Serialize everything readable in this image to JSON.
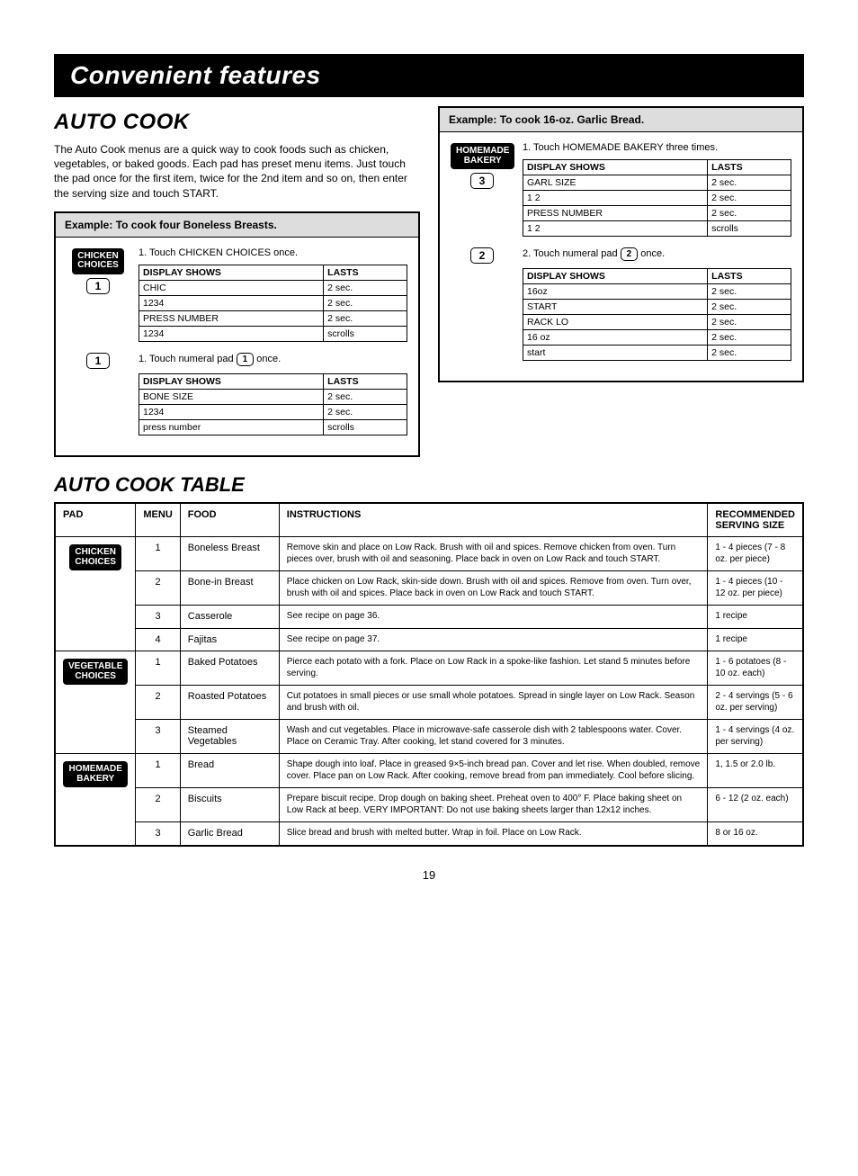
{
  "banner": "Convenient features",
  "section_title": "AUTO COOK",
  "intro": "The Auto Cook menus are a quick way to cook foods such as chicken, vegetables, or baked goods. Each pad has preset menu items. Just touch the pad once for the first item, twice for the 2nd item and so on, then enter the serving size and touch START.",
  "example1": {
    "header": "Example: To cook four Boneless Breasts.",
    "btn1": "CHICKEN\nCHOICES",
    "num_btn": "1",
    "step1_text": "1. Touch CHICKEN CHOICES once.",
    "disp1": {
      "header1": "DISPLAY SHOWS",
      "header2": "LASTS",
      "rows": [
        [
          "CHIC",
          "2 sec."
        ],
        [
          "1234",
          "2 sec."
        ],
        [
          "PRESS NUMBER",
          "2 sec."
        ],
        [
          "1234",
          "scrolls"
        ]
      ]
    },
    "step2_prefix": "1. Touch numeral pad ",
    "step2_suffix": " once.",
    "disp2": {
      "header1": "DISPLAY SHOWS",
      "header2": "LASTS",
      "rows": [
        [
          "BONE SIZE",
          "2 sec."
        ],
        [
          "1234",
          "2 sec."
        ],
        [
          "press number",
          "scrolls"
        ]
      ]
    }
  },
  "example2": {
    "header": "Example: To cook 16-oz. Garlic Bread.",
    "btn1": "HOMEMADE\nBAKERY",
    "num_a": "3",
    "step1_text": "1. Touch HOMEMADE BAKERY three times.",
    "disp1": {
      "header1": "DISPLAY SHOWS",
      "header2": "LASTS",
      "rows": [
        [
          "GARL SIZE",
          "2 sec."
        ],
        [
          "1 2",
          "2 sec."
        ],
        [
          "PRESS NUMBER",
          "2 sec."
        ],
        [
          "1 2",
          "scrolls"
        ]
      ]
    },
    "num_b": "2",
    "step2_prefix": "2. Touch numeral pad ",
    "step2_btn": "2",
    "step2_suffix": " once.",
    "disp2": {
      "header1": "DISPLAY SHOWS",
      "header2": "LASTS",
      "rows": [
        [
          "16oz",
          "2 sec."
        ],
        [
          "START",
          "2 sec."
        ],
        [
          "RACK LO",
          "2 sec."
        ],
        [
          "16 oz",
          "2 sec."
        ],
        [
          "start",
          "2 sec."
        ]
      ]
    }
  },
  "table_title": "AUTO COOK TABLE",
  "cook_table": {
    "headers": [
      "PAD",
      "MENU",
      "FOOD",
      "INSTRUCTIONS",
      "RECOMMENDED SERVING SIZE"
    ],
    "rows": [
      {
        "pad": "CHICKEN\nCHOICES",
        "menu": "1",
        "food": "Boneless Breast",
        "instr": "Remove skin and place on Low Rack. Brush with oil and spices. Remove chicken from oven. Turn pieces over, brush with oil and seasoning. Place back in oven on Low Rack and touch START.",
        "rec": "1 - 4 pieces (7 - 8 oz. per piece)"
      },
      {
        "pad": "",
        "menu": "2",
        "food": "Bone-in Breast",
        "instr": "Place chicken on Low Rack, skin-side down. Brush with oil and spices. Remove from oven. Turn over, brush with oil and spices. Place back in oven on Low Rack and touch START.",
        "rec": "1 - 4 pieces (10 - 12 oz. per piece)"
      },
      {
        "pad": "",
        "menu": "3",
        "food": "Casserole",
        "instr": "See recipe on page 36.",
        "rec": "1 recipe"
      },
      {
        "pad": "",
        "menu": "4",
        "food": "Fajitas",
        "instr": "See recipe on page 37.",
        "rec": "1 recipe"
      },
      {
        "pad": "VEGETABLE\nCHOICES",
        "menu": "1",
        "food": "Baked Potatoes",
        "instr": "Pierce each potato with a fork. Place on Low Rack in a spoke-like fashion. Let stand 5 minutes before serving.",
        "rec": "1 - 6 potatoes (8 - 10 oz. each)"
      },
      {
        "pad": "",
        "menu": "2",
        "food": "Roasted Potatoes",
        "instr": "Cut potatoes in small pieces or use small whole potatoes. Spread in single layer on Low Rack. Season and brush with oil.",
        "rec": "2 - 4 servings (5 - 6 oz. per serving)"
      },
      {
        "pad": "",
        "menu": "3",
        "food": "Steamed Vegetables",
        "instr": "Wash and cut vegetables. Place in microwave-safe casserole dish with 2 tablespoons water. Cover. Place on Ceramic Tray. After cooking, let stand covered for 3 minutes.",
        "rec": "1 - 4 servings (4 oz. per serving)"
      },
      {
        "pad": "HOMEMADE\nBAKERY",
        "menu": "1",
        "food": "Bread",
        "instr": "Shape dough into loaf. Place in greased 9×5-inch bread pan. Cover and let rise. When doubled, remove cover. Place pan on Low Rack. After cooking, remove bread from pan immediately. Cool before slicing.",
        "rec": "1, 1.5 or 2.0 lb."
      },
      {
        "pad": "",
        "menu": "2",
        "food": "Biscuits",
        "instr": "Prepare biscuit recipe. Drop dough on baking sheet. Preheat oven to 400° F. Place baking sheet on Low Rack at beep. VERY IMPORTANT: Do not use baking sheets larger than 12x12 inches.",
        "rec": "6 - 12 (2 oz. each)"
      },
      {
        "pad": "",
        "menu": "3",
        "food": "Garlic Bread",
        "instr": "Slice bread and brush with melted butter. Wrap in foil. Place on Low Rack.",
        "rec": "8 or 16 oz."
      }
    ]
  },
  "page_number": "19"
}
